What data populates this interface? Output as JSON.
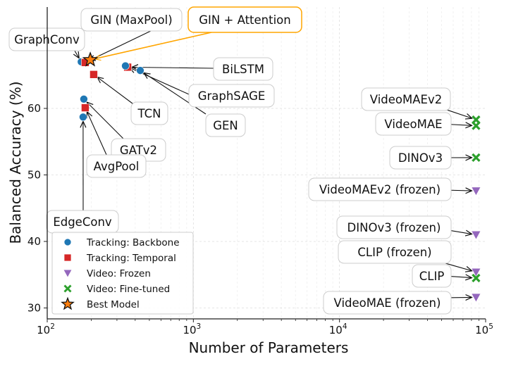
{
  "chart_data": {
    "type": "scatter",
    "title": "",
    "xlabel": "Number of Parameters",
    "ylabel": "Balanced Accuracy (%)",
    "xscale": "log",
    "xlim": [
      100,
      100000
    ],
    "ylim": [
      28.2,
      75.3
    ],
    "xticks": [
      {
        "value": 100,
        "base": "10",
        "exp": "2"
      },
      {
        "value": 1000,
        "base": "10",
        "exp": "3"
      },
      {
        "value": 10000,
        "base": "10",
        "exp": "4"
      },
      {
        "value": 100000,
        "base": "10",
        "exp": "5"
      }
    ],
    "yticks": [
      "30",
      "40",
      "50",
      "60"
    ],
    "grid": true,
    "legend_position": "bottom-left",
    "series": [
      {
        "name": "Tracking: Backbone",
        "marker": "circle",
        "color": "#1f77b4"
      },
      {
        "name": "Tracking: Temporal",
        "marker": "square",
        "color": "#d62728"
      },
      {
        "name": "Video: Frozen",
        "marker": "triangle-down",
        "color": "#9467bd"
      },
      {
        "name": "Video: Fine-tuned",
        "marker": "x",
        "color": "#2ca02c"
      },
      {
        "name": "Best Model",
        "marker": "star",
        "color": "#ff7f0e"
      }
    ],
    "points": [
      {
        "label": "GraphConv",
        "series": 0,
        "x": 171,
        "y": 67.0
      },
      {
        "label": "GIN (MaxPool)",
        "series": 1,
        "x": 182,
        "y": 66.9
      },
      {
        "label": "GIN + Attention",
        "series": 4,
        "x": 197,
        "y": 67.3,
        "highlight": true
      },
      {
        "label": "BiLSTM",
        "series": 1,
        "x": 355,
        "y": 66.2
      },
      {
        "label": "GraphSAGE",
        "series": 0,
        "x": 343,
        "y": 66.4
      },
      {
        "label": "GEN",
        "series": 0,
        "x": 433,
        "y": 65.7
      },
      {
        "label": "TCN",
        "series": 1,
        "x": 208,
        "y": 65.1
      },
      {
        "label": "GATv2",
        "series": 0,
        "x": 178,
        "y": 61.4
      },
      {
        "label": "AvgPool",
        "series": 1,
        "x": 182,
        "y": 60.1
      },
      {
        "label": "EdgeConv",
        "series": 0,
        "x": 176,
        "y": 58.7
      },
      {
        "label": "VideoMAEv2",
        "series": 3,
        "x": 86000,
        "y": 58.3
      },
      {
        "label": "VideoMAE",
        "series": 3,
        "x": 86000,
        "y": 57.4
      },
      {
        "label": "DINOv3",
        "series": 3,
        "x": 86000,
        "y": 52.6
      },
      {
        "label": "VideoMAEv2 (frozen)",
        "series": 2,
        "x": 86000,
        "y": 47.6
      },
      {
        "label": "DINOv3 (frozen)",
        "series": 2,
        "x": 86000,
        "y": 41.0
      },
      {
        "label": "CLIP (frozen)",
        "series": 2,
        "x": 86000,
        "y": 35.4
      },
      {
        "label": "CLIP",
        "series": 3,
        "x": 86000,
        "y": 34.5
      },
      {
        "label": "VideoMAE (frozen)",
        "series": 2,
        "x": 86000,
        "y": 31.6
      }
    ],
    "highlight_color": "#ffa500"
  }
}
